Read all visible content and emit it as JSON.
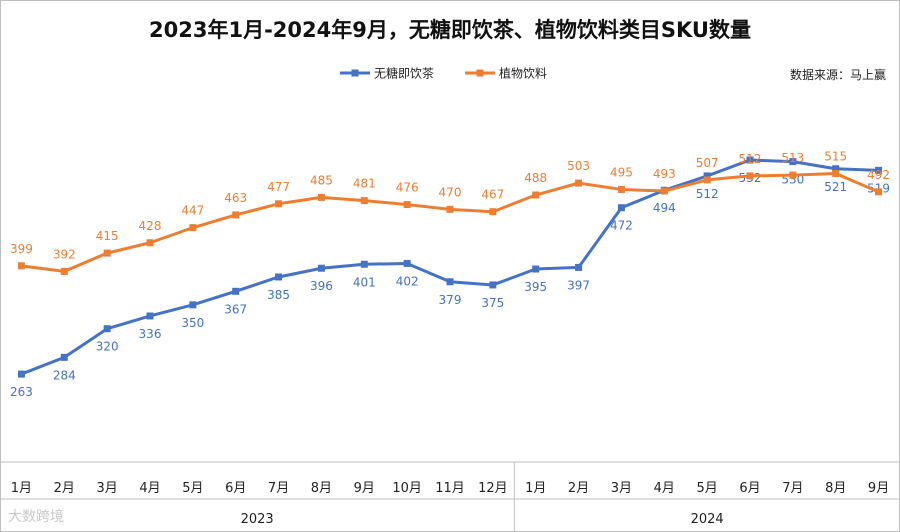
{
  "chart_data": {
    "type": "line",
    "title": "2023年1月-2024年9月，无糖即饮茶、植物饮料类目SKU数量",
    "source": "数据来源：马上赢",
    "watermark": "大数跨境",
    "legend_position": "top-center",
    "grid": false,
    "ylim": [
      150,
      560
    ],
    "categories": [
      "1月",
      "2月",
      "3月",
      "4月",
      "5月",
      "6月",
      "7月",
      "8月",
      "9月",
      "10月",
      "11月",
      "12月",
      "1月",
      "2月",
      "3月",
      "4月",
      "5月",
      "6月",
      "7月",
      "8月",
      "9月"
    ],
    "year_groups": [
      {
        "label": "2023",
        "span": 12
      },
      {
        "label": "2024",
        "span": 9
      }
    ],
    "series": [
      {
        "name": "无糖即饮茶",
        "color": "#4472c4",
        "label_position": "below",
        "values": [
          263,
          284,
          320,
          336,
          350,
          367,
          385,
          396,
          401,
          402,
          379,
          375,
          395,
          397,
          472,
          494,
          512,
          532,
          530,
          521,
          519
        ]
      },
      {
        "name": "植物饮料",
        "color": "#ed7d31",
        "label_position": "above",
        "values": [
          399,
          392,
          415,
          428,
          447,
          463,
          477,
          485,
          481,
          476,
          470,
          467,
          488,
          503,
          495,
          493,
          507,
          512,
          513,
          515,
          492
        ]
      }
    ]
  }
}
